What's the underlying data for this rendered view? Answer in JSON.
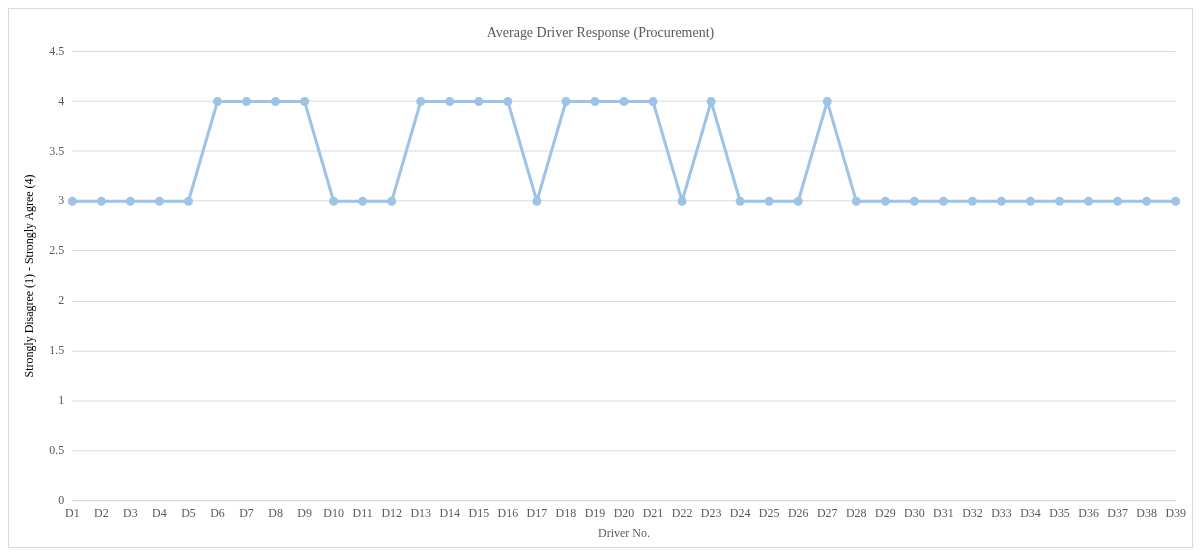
{
  "chart_data": {
    "type": "line",
    "title": "Average Driver Response (Procurement)",
    "xlabel": "Driver No.",
    "ylabel": "Strongly Disagree (1) - Strongly Agree (4)",
    "categories": [
      "D1",
      "D2",
      "D3",
      "D4",
      "D5",
      "D6",
      "D7",
      "D8",
      "D9",
      "D10",
      "D11",
      "D12",
      "D13",
      "D14",
      "D15",
      "D16",
      "D17",
      "D18",
      "D19",
      "D20",
      "D21",
      "D22",
      "D23",
      "D24",
      "D25",
      "D26",
      "D27",
      "D28",
      "D29",
      "D30",
      "D31",
      "D32",
      "D33",
      "D34",
      "D35",
      "D36",
      "D37",
      "D38",
      "D39"
    ],
    "series": [
      {
        "color": "#9dc3e6",
        "values": [
          3,
          3,
          3,
          3,
          3,
          4,
          4,
          4,
          4,
          3,
          3,
          3,
          4,
          4,
          4,
          4,
          3,
          4,
          4,
          4,
          4,
          3,
          4,
          3,
          3,
          3,
          4,
          3,
          3,
          3,
          3,
          3,
          3,
          3,
          3,
          3,
          3,
          3,
          3
        ]
      }
    ],
    "ylim": [
      0,
      4.5
    ],
    "yticks": [
      0,
      0.5,
      1,
      1.5,
      2,
      2.5,
      3,
      3.5,
      4,
      4.5
    ],
    "grid": "y",
    "legend": false,
    "marker": "circle",
    "line_style": "solid"
  }
}
